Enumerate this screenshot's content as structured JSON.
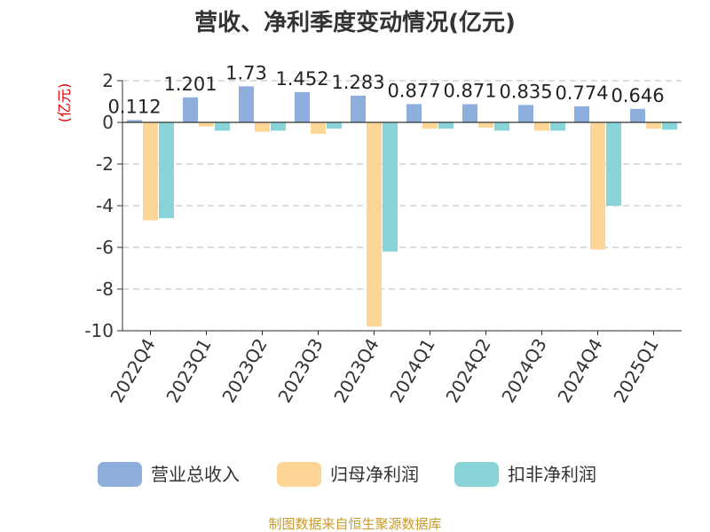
{
  "chart_data": {
    "type": "bar",
    "title": "营收、净利季度变动情况(亿元)",
    "ylabel": "(亿元)",
    "xlabel": "",
    "categories": [
      "2022Q4",
      "2023Q1",
      "2023Q2",
      "2023Q3",
      "2023Q4",
      "2024Q1",
      "2024Q2",
      "2024Q3",
      "2024Q4",
      "2025Q1"
    ],
    "series": [
      {
        "name": "营业总收入",
        "color": "#8eaedb",
        "values": [
          0.112,
          1.201,
          1.73,
          1.452,
          1.283,
          0.877,
          0.871,
          0.835,
          0.774,
          0.646
        ],
        "labels": [
          "0.112",
          "1.201",
          "1.73",
          "1.452",
          "1.283",
          "0.877",
          "0.871",
          "0.835",
          "0.774",
          "0.646"
        ]
      },
      {
        "name": "归母净利润",
        "color": "#fdd696",
        "values": [
          -4.7,
          -0.2,
          -0.45,
          -0.55,
          -9.8,
          -0.3,
          -0.25,
          -0.4,
          -6.1,
          -0.3
        ]
      },
      {
        "name": "扣非净利润",
        "color": "#88d4d8",
        "values": [
          -4.6,
          -0.4,
          -0.4,
          -0.3,
          -6.2,
          -0.3,
          -0.4,
          -0.4,
          -4.0,
          -0.35
        ]
      }
    ],
    "ylim": [
      -10,
      2
    ],
    "yticks": [
      "2",
      "0",
      "-2",
      "-4",
      "-6",
      "-8",
      "-10"
    ],
    "grid": true,
    "legend_position": "bottom"
  },
  "source_note": "制图数据来自恒生聚源数据库"
}
